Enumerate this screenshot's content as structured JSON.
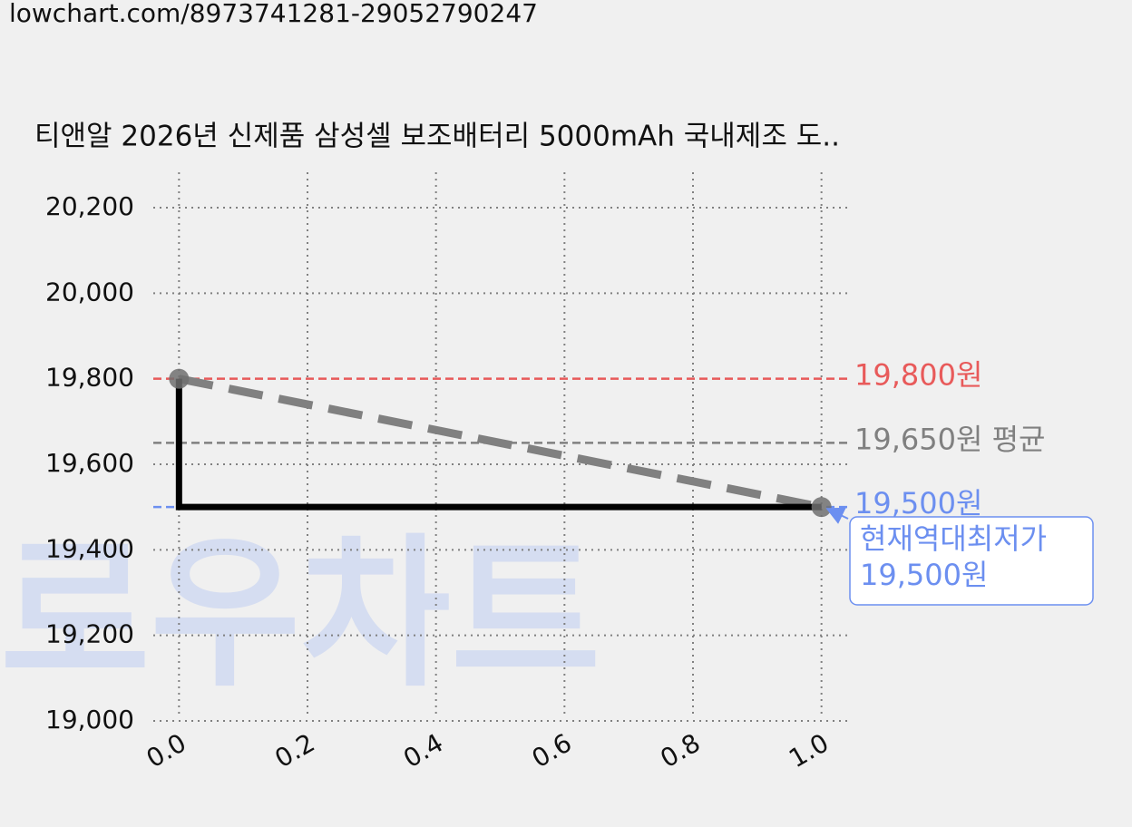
{
  "header": {
    "url": "lowchart.com/8973741281-29052790247"
  },
  "chart_data": {
    "type": "line",
    "title": "티앤알 2026년 신제품 삼성셀 보조배터리 5000mAh 국내제조 도..",
    "watermark": "로우차트",
    "x": [
      0,
      1
    ],
    "step": "pre",
    "series": [
      {
        "color": "#000000",
        "values": [
          19800,
          19500
        ]
      }
    ],
    "trend_color": "#808080",
    "marker_color": "#707070",
    "xlim": [
      -0.04,
      1.04
    ],
    "ylim": [
      19000,
      20280
    ],
    "xticks": [
      {
        "value": 0,
        "label": "0.0"
      },
      {
        "value": 0.2,
        "label": "0.2"
      },
      {
        "value": 0.4,
        "label": "0.4"
      },
      {
        "value": 0.6,
        "label": "0.6"
      },
      {
        "value": 0.8,
        "label": "0.8"
      },
      {
        "value": 1,
        "label": "1.0"
      }
    ],
    "yticks": [
      {
        "value": 19000,
        "label": "19,000"
      },
      {
        "value": 19200,
        "label": "19,200"
      },
      {
        "value": 19400,
        "label": "19,400"
      },
      {
        "value": 19600,
        "label": "19,600"
      },
      {
        "value": 19800,
        "label": "19,800"
      },
      {
        "value": 20000,
        "label": "20,000"
      },
      {
        "value": 20200,
        "label": "20,200"
      }
    ],
    "grid": true,
    "reference_lines": [
      {
        "value": 19800,
        "label": "19,800원",
        "color": "#e85a5a"
      },
      {
        "value": 19650,
        "label": "19,650원 평균",
        "color": "#808080"
      },
      {
        "value": 19500,
        "label": "19,500원",
        "color": "#6c8ff0"
      }
    ],
    "annotation": {
      "lines": [
        "현재역대최저가",
        "19,500원"
      ],
      "color": "#6c8ff0"
    }
  }
}
